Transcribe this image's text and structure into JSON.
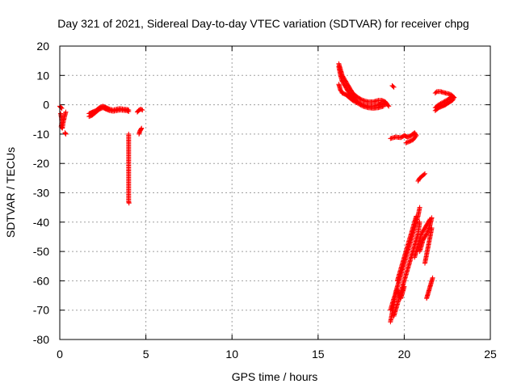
{
  "chart_data": {
    "type": "scatter",
    "title": "Day 321 of 2021, Sidereal Day-to-day VTEC variation (SDTVAR) for receiver chpg",
    "xlabel": "GPS time / hours",
    "ylabel": "SDTVAR / TECUs",
    "xlim": [
      0,
      25
    ],
    "ylim": [
      -80,
      20
    ],
    "xticks": [
      0,
      5,
      10,
      15,
      20,
      25
    ],
    "yticks": [
      -80,
      -70,
      -60,
      -50,
      -40,
      -30,
      -20,
      -10,
      0,
      10,
      20
    ],
    "grid": true,
    "marker": "+",
    "color": "#ff0000",
    "series": [
      {
        "name": "SDTVAR",
        "segments": [
          [
            [
              0.0,
              -0.5
            ],
            [
              0.05,
              -0.8
            ],
            [
              0.08,
              -1.0
            ],
            [
              0.12,
              -1.2
            ]
          ],
          [
            [
              0.05,
              -3
            ],
            [
              0.1,
              -4.5
            ],
            [
              0.12,
              -6
            ],
            [
              0.08,
              -7.5
            ],
            [
              0.15,
              -8
            ],
            [
              0.2,
              -6
            ],
            [
              0.3,
              -3.5
            ],
            [
              0.35,
              -2.5
            ]
          ],
          [
            [
              0.3,
              -9.5
            ],
            [
              0.35,
              -10
            ]
          ],
          [
            [
              1.7,
              -4
            ],
            [
              1.9,
              -3.5
            ],
            [
              2.1,
              -2.5
            ],
            [
              2.3,
              -1.5
            ],
            [
              2.5,
              -1.0
            ],
            [
              2.7,
              -1.5
            ],
            [
              2.9,
              -2.0
            ],
            [
              3.1,
              -2.2
            ],
            [
              3.3,
              -2.0
            ],
            [
              3.5,
              -1.8
            ],
            [
              3.7,
              -1.9
            ],
            [
              3.9,
              -2.0
            ],
            [
              4.0,
              -2.3
            ]
          ],
          [
            [
              1.7,
              -3
            ],
            [
              1.9,
              -2.5
            ],
            [
              2.1,
              -2.0
            ],
            [
              2.3,
              -1.0
            ],
            [
              2.5,
              -0.5
            ],
            [
              2.7,
              -1.0
            ],
            [
              2.9,
              -1.5
            ],
            [
              3.1,
              -1.8
            ],
            [
              3.3,
              -1.5
            ],
            [
              3.5,
              -1.3
            ],
            [
              3.7,
              -1.5
            ],
            [
              3.9,
              -1.6
            ],
            [
              4.0,
              -1.8
            ]
          ],
          [
            [
              4.5,
              -2.5
            ],
            [
              4.6,
              -1.8
            ],
            [
              4.7,
              -1.5
            ],
            [
              4.8,
              -1.8
            ]
          ],
          [
            [
              4.0,
              -10
            ],
            [
              4.0,
              -23.5
            ],
            [
              4.0,
              -33
            ],
            [
              4.02,
              -33.5
            ]
          ],
          [
            [
              4.6,
              -10
            ],
            [
              4.65,
              -9
            ],
            [
              4.7,
              -8.5
            ],
            [
              4.75,
              -8
            ]
          ],
          [
            [
              16.2,
              13
            ],
            [
              16.3,
              10
            ],
            [
              16.4,
              8
            ],
            [
              16.6,
              6
            ],
            [
              16.8,
              4
            ],
            [
              17.0,
              2.5
            ],
            [
              17.3,
              1.0
            ],
            [
              17.6,
              0
            ],
            [
              17.9,
              -0.5
            ],
            [
              18.2,
              -0.5
            ],
            [
              18.5,
              0
            ],
            [
              18.7,
              0.5
            ],
            [
              18.9,
              0
            ]
          ],
          [
            [
              16.2,
              14
            ],
            [
              16.3,
              12
            ],
            [
              16.4,
              10
            ],
            [
              16.6,
              8
            ],
            [
              16.8,
              6
            ],
            [
              17.0,
              4
            ],
            [
              17.3,
              2.5
            ],
            [
              17.6,
              1.5
            ],
            [
              17.9,
              1.0
            ],
            [
              18.2,
              1.0
            ],
            [
              18.5,
              1.5
            ],
            [
              18.7,
              1.5
            ],
            [
              18.9,
              1.0
            ],
            [
              19.1,
              -0.5
            ]
          ],
          [
            [
              16.2,
              7
            ],
            [
              16.3,
              5
            ],
            [
              16.4,
              4
            ],
            [
              16.6,
              3.5
            ],
            [
              16.8,
              2.5
            ],
            [
              17.0,
              1.5
            ],
            [
              17.3,
              0.5
            ],
            [
              17.6,
              -0.5
            ],
            [
              17.9,
              -1
            ],
            [
              18.2,
              -1.2
            ],
            [
              18.5,
              -1
            ],
            [
              18.8,
              -0.5
            ]
          ],
          [
            [
              19.2,
              -11.5
            ],
            [
              19.5,
              -11
            ],
            [
              19.8,
              -11.2
            ],
            [
              20.0,
              -10.5
            ],
            [
              20.2,
              -11
            ],
            [
              20.4,
              -10.5
            ],
            [
              20.6,
              -9.5
            ],
            [
              20.7,
              -10.5
            ],
            [
              20.5,
              -12
            ],
            [
              20.1,
              -13
            ]
          ],
          [
            [
              19.3,
              6.5
            ],
            [
              19.4,
              6.0
            ]
          ],
          [
            [
              20.8,
              -26
            ],
            [
              20.9,
              -25
            ],
            [
              21.0,
              -24.5
            ],
            [
              21.1,
              -24
            ],
            [
              21.2,
              -23.5
            ]
          ],
          [
            [
              21.8,
              -2
            ],
            [
              22.0,
              -1
            ],
            [
              22.2,
              -0.5
            ],
            [
              22.4,
              0
            ],
            [
              22.6,
              0.8
            ],
            [
              22.8,
              1.5
            ],
            [
              22.9,
              2.5
            ],
            [
              22.7,
              3.5
            ],
            [
              22.4,
              4
            ],
            [
              22.1,
              4.5
            ],
            [
              21.9,
              4.5
            ],
            [
              21.8,
              4
            ]
          ],
          [
            [
              21.8,
              -1
            ],
            [
              22.0,
              0
            ],
            [
              22.3,
              1
            ],
            [
              22.6,
              2
            ],
            [
              22.8,
              3
            ]
          ],
          [
            [
              19.2,
              -74
            ],
            [
              19.3,
              -71
            ],
            [
              19.4,
              -68
            ],
            [
              19.5,
              -64
            ],
            [
              19.6,
              -62
            ],
            [
              19.8,
              -58
            ],
            [
              20.0,
              -54
            ],
            [
              20.2,
              -50
            ],
            [
              20.4,
              -46
            ],
            [
              20.6,
              -42
            ],
            [
              20.8,
              -38
            ],
            [
              20.9,
              -35
            ]
          ],
          [
            [
              19.4,
              -72
            ],
            [
              19.6,
              -68
            ],
            [
              19.8,
              -64
            ],
            [
              20.0,
              -60
            ],
            [
              20.2,
              -56
            ],
            [
              20.4,
              -52
            ],
            [
              20.6,
              -48
            ],
            [
              20.8,
              -44
            ],
            [
              20.9,
              -40
            ]
          ],
          [
            [
              19.2,
              -70
            ],
            [
              19.4,
              -66
            ],
            [
              19.6,
              -63
            ],
            [
              19.8,
              -66
            ],
            [
              19.9,
              -64
            ],
            [
              20.0,
              -62
            ]
          ],
          [
            [
              19.6,
              -60
            ],
            [
              19.8,
              -56
            ],
            [
              20.0,
              -52
            ],
            [
              20.2,
              -48
            ],
            [
              20.4,
              -44
            ],
            [
              20.6,
              -40
            ],
            [
              20.7,
              -38
            ]
          ],
          [
            [
              20.6,
              -52
            ],
            [
              20.8,
              -48
            ],
            [
              21.0,
              -44
            ],
            [
              21.2,
              -42
            ],
            [
              21.4,
              -40
            ],
            [
              21.5,
              -39
            ]
          ],
          [
            [
              20.9,
              -50
            ],
            [
              21.1,
              -46
            ],
            [
              21.3,
              -44
            ],
            [
              21.5,
              -41
            ],
            [
              21.6,
              -38.5
            ]
          ],
          [
            [
              21.2,
              -54
            ],
            [
              21.3,
              -51
            ],
            [
              21.4,
              -48
            ],
            [
              21.5,
              -45
            ],
            [
              21.6,
              -42
            ]
          ],
          [
            [
              21.3,
              -66
            ],
            [
              21.4,
              -64
            ],
            [
              21.5,
              -62
            ],
            [
              21.6,
              -60
            ],
            [
              21.65,
              -59
            ]
          ]
        ]
      }
    ]
  }
}
